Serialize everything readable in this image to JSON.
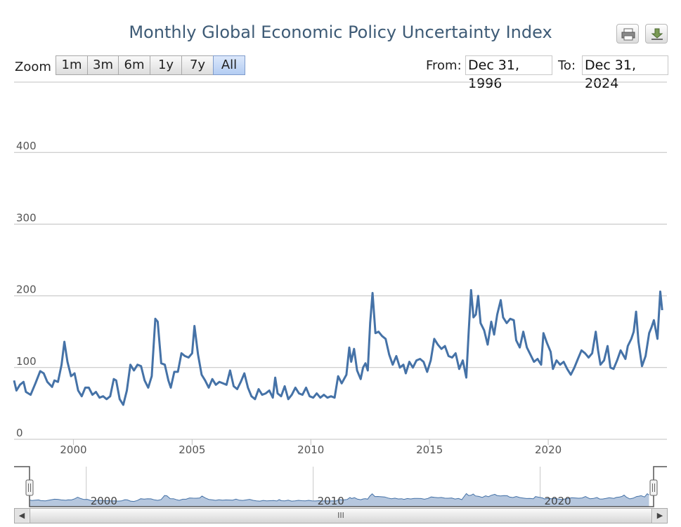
{
  "title": "Monthly Global Economic Policy Uncertainty Index",
  "toolbar": {
    "print_icon": "printer-icon",
    "download_icon": "download-icon"
  },
  "range_selector": {
    "zoom_label": "Zoom",
    "buttons": [
      "1m",
      "3m",
      "6m",
      "1y",
      "7y",
      "All"
    ],
    "active": "All",
    "from_label": "From:",
    "from_value": "Dec 31, 1996",
    "to_label": "To:",
    "to_value": "Dec 31, 2024"
  },
  "navigator": {
    "tick_labels": [
      "2000",
      "2010",
      "2020"
    ],
    "scroll_grip": "III"
  },
  "colors": {
    "line": "#4572a7",
    "navigator_fill": "#b6c7de",
    "grid": "#c0c0c0"
  },
  "chart_data": {
    "type": "line",
    "title": "Monthly Global Economic Policy Uncertainty Index",
    "xlabel": "",
    "ylabel": "",
    "grid": true,
    "ylim": [
      0,
      480
    ],
    "y_ticks": [
      0,
      100,
      200,
      300,
      400
    ],
    "x_ticks": [
      2000,
      2005,
      2010,
      2015,
      2020
    ],
    "x_range": [
      1997.5,
      2025.0
    ],
    "series": [
      {
        "points": [
          [
            1997.5,
            82
          ],
          [
            1997.6,
            68
          ],
          [
            1997.75,
            76
          ],
          [
            1997.9,
            80
          ],
          [
            1998.0,
            66
          ],
          [
            1998.2,
            62
          ],
          [
            1998.4,
            78
          ],
          [
            1998.6,
            95
          ],
          [
            1998.75,
            92
          ],
          [
            1998.9,
            80
          ],
          [
            1999.1,
            73
          ],
          [
            1999.2,
            82
          ],
          [
            1999.35,
            80
          ],
          [
            1999.5,
            104
          ],
          [
            1999.62,
            136
          ],
          [
            1999.75,
            108
          ],
          [
            1999.9,
            88
          ],
          [
            2000.05,
            92
          ],
          [
            2000.2,
            68
          ],
          [
            2000.35,
            60
          ],
          [
            2000.5,
            72
          ],
          [
            2000.65,
            72
          ],
          [
            2000.8,
            62
          ],
          [
            2000.95,
            66
          ],
          [
            2001.1,
            58
          ],
          [
            2001.25,
            60
          ],
          [
            2001.4,
            56
          ],
          [
            2001.55,
            60
          ],
          [
            2001.7,
            84
          ],
          [
            2001.8,
            82
          ],
          [
            2001.95,
            56
          ],
          [
            2002.1,
            48
          ],
          [
            2002.25,
            68
          ],
          [
            2002.4,
            104
          ],
          [
            2002.55,
            96
          ],
          [
            2002.7,
            104
          ],
          [
            2002.85,
            102
          ],
          [
            2003.0,
            82
          ],
          [
            2003.15,
            72
          ],
          [
            2003.3,
            88
          ],
          [
            2003.45,
            168
          ],
          [
            2003.55,
            164
          ],
          [
            2003.7,
            106
          ],
          [
            2003.85,
            104
          ],
          [
            2004.0,
            82
          ],
          [
            2004.1,
            72
          ],
          [
            2004.25,
            94
          ],
          [
            2004.4,
            94
          ],
          [
            2004.55,
            120
          ],
          [
            2004.7,
            116
          ],
          [
            2004.85,
            114
          ],
          [
            2005.0,
            120
          ],
          [
            2005.1,
            158
          ],
          [
            2005.25,
            118
          ],
          [
            2005.4,
            90
          ],
          [
            2005.55,
            82
          ],
          [
            2005.7,
            72
          ],
          [
            2005.85,
            84
          ],
          [
            2006.0,
            76
          ],
          [
            2006.15,
            80
          ],
          [
            2006.3,
            78
          ],
          [
            2006.45,
            76
          ],
          [
            2006.6,
            96
          ],
          [
            2006.75,
            74
          ],
          [
            2006.9,
            70
          ],
          [
            2007.05,
            80
          ],
          [
            2007.2,
            92
          ],
          [
            2007.35,
            72
          ],
          [
            2007.5,
            60
          ],
          [
            2007.65,
            56
          ],
          [
            2007.8,
            70
          ],
          [
            2007.95,
            62
          ],
          [
            2008.1,
            64
          ],
          [
            2008.25,
            68
          ],
          [
            2008.4,
            58
          ],
          [
            2008.5,
            86
          ],
          [
            2008.6,
            64
          ],
          [
            2008.75,
            60
          ],
          [
            2008.9,
            74
          ],
          [
            2009.05,
            56
          ],
          [
            2009.2,
            62
          ],
          [
            2009.35,
            72
          ],
          [
            2009.5,
            64
          ],
          [
            2009.65,
            62
          ],
          [
            2009.8,
            72
          ],
          [
            2009.95,
            60
          ],
          [
            2010.1,
            58
          ],
          [
            2010.25,
            64
          ],
          [
            2010.4,
            58
          ],
          [
            2010.55,
            62
          ],
          [
            2010.7,
            58
          ],
          [
            2010.85,
            60
          ],
          [
            2011.0,
            58
          ],
          [
            2011.15,
            88
          ],
          [
            2011.3,
            78
          ],
          [
            2011.5,
            90
          ],
          [
            2011.62,
            128
          ],
          [
            2011.7,
            108
          ],
          [
            2011.82,
            126
          ],
          [
            2011.95,
            96
          ],
          [
            2012.1,
            84
          ],
          [
            2012.2,
            100
          ],
          [
            2012.3,
            106
          ],
          [
            2012.4,
            96
          ],
          [
            2012.5,
            162
          ],
          [
            2012.6,
            204
          ],
          [
            2012.72,
            148
          ],
          [
            2012.85,
            150
          ],
          [
            2013.0,
            144
          ],
          [
            2013.15,
            140
          ],
          [
            2013.3,
            118
          ],
          [
            2013.45,
            104
          ],
          [
            2013.6,
            116
          ],
          [
            2013.75,
            100
          ],
          [
            2013.9,
            104
          ],
          [
            2014.0,
            92
          ],
          [
            2014.15,
            108
          ],
          [
            2014.3,
            100
          ],
          [
            2014.45,
            110
          ],
          [
            2014.6,
            112
          ],
          [
            2014.75,
            108
          ],
          [
            2014.9,
            94
          ],
          [
            2015.05,
            110
          ],
          [
            2015.2,
            140
          ],
          [
            2015.35,
            132
          ],
          [
            2015.5,
            126
          ],
          [
            2015.65,
            130
          ],
          [
            2015.8,
            116
          ],
          [
            2015.95,
            114
          ],
          [
            2016.1,
            120
          ],
          [
            2016.25,
            98
          ],
          [
            2016.4,
            110
          ],
          [
            2016.55,
            86
          ],
          [
            2016.65,
            150
          ],
          [
            2016.75,
            208
          ],
          [
            2016.85,
            170
          ],
          [
            2016.95,
            174
          ],
          [
            2017.05,
            200
          ],
          [
            2017.15,
            162
          ],
          [
            2017.3,
            152
          ],
          [
            2017.45,
            132
          ],
          [
            2017.6,
            164
          ],
          [
            2017.72,
            146
          ],
          [
            2017.85,
            174
          ],
          [
            2018.0,
            194
          ],
          [
            2018.1,
            170
          ],
          [
            2018.25,
            162
          ],
          [
            2018.4,
            168
          ],
          [
            2018.55,
            166
          ],
          [
            2018.65,
            138
          ],
          [
            2018.8,
            128
          ],
          [
            2018.95,
            150
          ],
          [
            2019.1,
            128
          ],
          [
            2019.25,
            118
          ],
          [
            2019.4,
            108
          ],
          [
            2019.55,
            112
          ],
          [
            2019.7,
            104
          ],
          [
            2019.8,
            148
          ],
          [
            2019.95,
            134
          ],
          [
            2020.1,
            122
          ],
          [
            2020.2,
            98
          ],
          [
            2020.35,
            110
          ],
          [
            2020.5,
            104
          ],
          [
            2020.65,
            108
          ],
          [
            2020.8,
            98
          ],
          [
            2020.95,
            90
          ],
          [
            2021.1,
            100
          ],
          [
            2021.25,
            112
          ],
          [
            2021.4,
            124
          ],
          [
            2021.55,
            120
          ],
          [
            2021.7,
            114
          ],
          [
            2021.85,
            120
          ],
          [
            2022.0,
            150
          ],
          [
            2022.1,
            124
          ],
          [
            2022.2,
            104
          ],
          [
            2022.35,
            110
          ],
          [
            2022.5,
            130
          ],
          [
            2022.62,
            100
          ],
          [
            2022.75,
            98
          ],
          [
            2022.9,
            110
          ],
          [
            2023.05,
            124
          ],
          [
            2023.15,
            118
          ],
          [
            2023.25,
            112
          ],
          [
            2023.35,
            130
          ],
          [
            2023.5,
            140
          ],
          [
            2023.6,
            150
          ],
          [
            2023.7,
            178
          ],
          [
            2023.8,
            136
          ],
          [
            2023.95,
            102
          ],
          [
            2024.1,
            116
          ],
          [
            2024.25,
            148
          ],
          [
            2024.35,
            156
          ],
          [
            2024.45,
            166
          ],
          [
            2024.6,
            140
          ],
          [
            2024.72,
            206
          ],
          [
            2024.8,
            180
          ]
        ]
      }
    ]
  }
}
